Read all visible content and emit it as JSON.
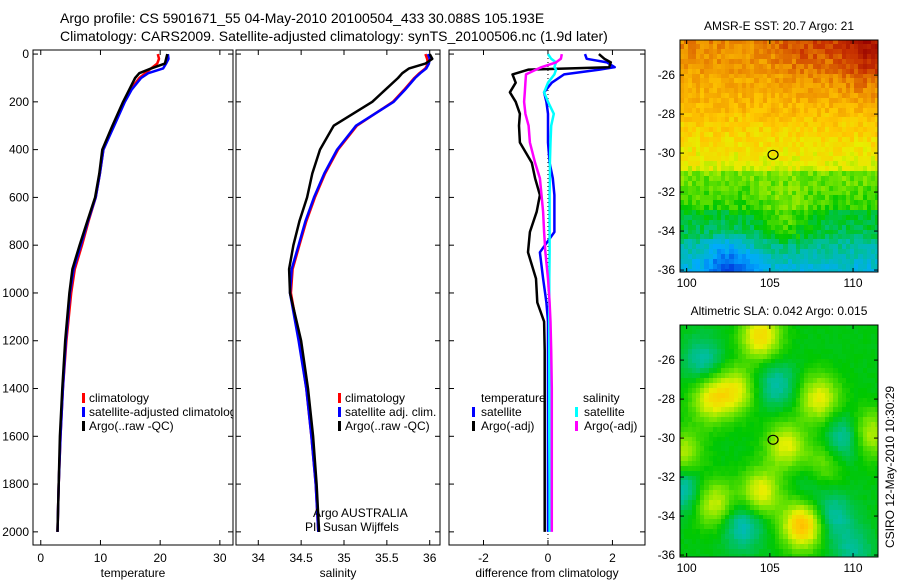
{
  "header": {
    "line1": "Argo profile: CS 5901671_55 04-May-2010 20100504_433 30.088S 105.193E",
    "line2": "Climatology: CARS2009. Satellite-adjusted climatology: synTS_20100506.nc (1.9d later)"
  },
  "footer_stamp": "CSIRO 12-May-2010 10:30:29",
  "colors": {
    "climatology": "#ff0000",
    "satellite": "#0000ff",
    "argo": "#000000",
    "sal_satellite": "#00ffff",
    "sal_argo": "#ff00ff"
  },
  "chart_data": [
    {
      "type": "line",
      "id": "temperature",
      "xlabel": "temperature",
      "ylabel": "",
      "xlim": [
        -1.3,
        32.2
      ],
      "ylim": [
        2055,
        -17
      ],
      "xticks": [
        "0",
        "10",
        "20",
        "30"
      ],
      "xtick_values": [
        0,
        10,
        20,
        30
      ],
      "yticks": [
        "0",
        "200",
        "400",
        "600",
        "800",
        "1000",
        "1200",
        "1400",
        "1600",
        "1800",
        "2000"
      ],
      "ytick_values": [
        0,
        200,
        400,
        600,
        800,
        1000,
        1200,
        1400,
        1600,
        1800,
        2000
      ],
      "depth": [
        0,
        20,
        40,
        60,
        80,
        100,
        150,
        200,
        300,
        400,
        500,
        600,
        700,
        800,
        900,
        1000,
        1200,
        1400,
        1600,
        1800,
        2000
      ],
      "series": [
        {
          "name": "climatology",
          "color": "#ff0000",
          "values": [
            19.6,
            19.8,
            19.5,
            18.5,
            17.5,
            16.5,
            15.0,
            14.0,
            12.2,
            10.5,
            9.9,
            9.2,
            8.0,
            6.9,
            5.7,
            5.1,
            4.3,
            3.7,
            3.3,
            3.0,
            2.8
          ]
        },
        {
          "name": "satellite-adjusted climatology",
          "color": "#0000ff",
          "values": [
            21.3,
            21.4,
            21.0,
            20.5,
            18.0,
            16.8,
            15.2,
            14.1,
            12.3,
            10.5,
            9.9,
            9.2,
            7.9,
            6.7,
            5.5,
            4.9,
            4.2,
            3.7,
            3.3,
            3.0,
            2.8
          ]
        },
        {
          "name": "Argo(..raw -QC)",
          "color": "#000000",
          "values": [
            21.2,
            21.0,
            20.8,
            18.5,
            16.5,
            15.8,
            14.8,
            13.8,
            12.0,
            10.3,
            9.8,
            9.1,
            7.8,
            6.5,
            5.3,
            4.8,
            4.1,
            3.6,
            3.2,
            3.0,
            2.8
          ]
        }
      ],
      "legend": [
        "climatology",
        "satellite-adjusted climatology",
        "Argo(..raw -QC)"
      ],
      "legend_placement": "lower-middle"
    },
    {
      "type": "line",
      "id": "salinity",
      "xlabel": "salinity",
      "xlim": [
        33.74,
        36.12
      ],
      "ylim": [
        2055,
        -17
      ],
      "xticks": [
        "34",
        "34.5",
        "35",
        "35.5",
        "36"
      ],
      "xtick_values": [
        34,
        34.5,
        35,
        35.5,
        36
      ],
      "ytick_values": [
        0,
        200,
        400,
        600,
        800,
        1000,
        1200,
        1400,
        1600,
        1800,
        2000
      ],
      "depth": [
        0,
        20,
        40,
        60,
        80,
        100,
        150,
        200,
        300,
        400,
        500,
        600,
        700,
        800,
        900,
        1000,
        1200,
        1400,
        1600,
        1800,
        2000
      ],
      "series": [
        {
          "name": "climatology",
          "color": "#ff0000",
          "values": [
            35.95,
            35.97,
            35.98,
            35.95,
            35.88,
            35.82,
            35.7,
            35.57,
            35.15,
            34.93,
            34.78,
            34.66,
            34.56,
            34.48,
            34.4,
            34.38,
            34.48,
            34.56,
            34.62,
            34.67,
            34.7
          ]
        },
        {
          "name": "satellite adj. clim.",
          "color": "#0000ff",
          "values": [
            35.98,
            36.0,
            35.99,
            35.96,
            35.89,
            35.83,
            35.71,
            35.58,
            35.14,
            34.92,
            34.77,
            34.65,
            34.55,
            34.47,
            34.39,
            34.37,
            34.47,
            34.56,
            34.62,
            34.67,
            34.7
          ]
        },
        {
          "name": "Argo(..raw -QC)",
          "color": "#000000",
          "values": [
            36.0,
            36.03,
            35.95,
            35.76,
            35.68,
            35.63,
            35.48,
            35.33,
            34.88,
            34.72,
            34.63,
            34.57,
            34.48,
            34.41,
            34.36,
            34.37,
            34.5,
            34.58,
            34.64,
            34.68,
            34.71
          ]
        }
      ],
      "legend": [
        "climatology",
        "satellite adj. clim.",
        "Argo(..raw -QC)"
      ],
      "annotation": [
        "Argo AUSTRALIA",
        "PI: Susan Wijffels"
      ]
    },
    {
      "type": "line",
      "id": "difference",
      "xlabel": "difference from climatology",
      "xlim": [
        -3.07,
        3.01
      ],
      "ylim": [
        2055,
        -17
      ],
      "xticks": [
        "-2",
        "0",
        "2"
      ],
      "xtick_values": [
        -2,
        0,
        2
      ],
      "ytick_values": [
        0,
        200,
        400,
        600,
        800,
        1000,
        1200,
        1400,
        1600,
        1800,
        2000
      ],
      "depth": [
        0,
        20,
        35,
        55,
        65,
        85,
        120,
        160,
        200,
        250,
        300,
        370,
        455,
        520,
        590,
        660,
        745,
        830,
        940,
        1040,
        1120,
        1240,
        1400,
        1600,
        1800,
        2000
      ],
      "series": [
        {
          "name": "temperature satellite",
          "color": "#0000ff",
          "values": [
            1.15,
            1.2,
            1.83,
            2.07,
            1.6,
            0.5,
            0.12,
            -0.12,
            -0.05,
            0.0,
            0.0,
            0.0,
            0.05,
            0.15,
            0.2,
            0.2,
            0.2,
            -0.25,
            -0.15,
            -0.05,
            0.0,
            0.0,
            0.0,
            0.0,
            0.0,
            0.0
          ]
        },
        {
          "name": "temperature Argo(-adj)",
          "color": "#000000",
          "values": [
            1.58,
            1.75,
            1.95,
            1.9,
            -0.6,
            -1.1,
            -1.0,
            -1.18,
            -1.0,
            -0.87,
            -0.9,
            -0.87,
            -0.5,
            -0.4,
            -0.25,
            -0.35,
            -0.56,
            -0.62,
            -0.37,
            -0.33,
            -0.12,
            -0.1,
            -0.1,
            -0.1,
            -0.1,
            -0.1
          ]
        },
        {
          "name": "salinity satellite",
          "color": "#00ffff",
          "values": [
            0.0,
            0.1,
            0.25,
            0.2,
            0.25,
            0.2,
            0.0,
            -0.12,
            0.0,
            0.18,
            0.1,
            0.08,
            0.06,
            0.06,
            0.05,
            0.05,
            0.05,
            0.05,
            0.04,
            0.04,
            0.04,
            0.04,
            0.04,
            0.04,
            0.05,
            0.05
          ]
        },
        {
          "name": "salinity Argo(-adj)",
          "color": "#ff00ff",
          "values": [
            0.43,
            0.4,
            0.25,
            -0.2,
            -0.37,
            -0.68,
            -0.7,
            -0.72,
            -0.74,
            -0.7,
            -0.6,
            -0.56,
            -0.4,
            -0.25,
            -0.2,
            -0.15,
            -0.12,
            -0.08,
            0.0,
            0.05,
            0.08,
            0.1,
            0.12,
            0.12,
            0.12,
            0.12
          ]
        }
      ],
      "legend_headers": [
        "temperature",
        "salinity"
      ],
      "legend": [
        "satellite",
        "Argo(-adj)",
        "satellite",
        "Argo(-adj)"
      ]
    },
    {
      "type": "heatmap",
      "id": "sst-map",
      "title": "AMSR-E SST: 20.7 Argo: 21",
      "xlim": [
        99.6,
        111.5
      ],
      "ylim": [
        -36.1,
        -24.2
      ],
      "xticks": [
        "100",
        "105",
        "110"
      ],
      "xtick_values": [
        100,
        105,
        110
      ],
      "yticks": [
        "-26",
        "-28",
        "-30",
        "-32",
        "-34",
        "-36"
      ],
      "ytick_values": [
        -26,
        -28,
        -30,
        -32,
        -34,
        -36
      ],
      "argo_position": [
        105.193,
        -30.088
      ]
    },
    {
      "type": "heatmap",
      "id": "sla-map",
      "title": "Altimetric SLA: 0.042 Argo: 0.015",
      "xlim": [
        99.6,
        111.5
      ],
      "ylim": [
        -36.1,
        -24.2
      ],
      "xticks": [
        "100",
        "105",
        "110"
      ],
      "xtick_values": [
        100,
        105,
        110
      ],
      "yticks": [
        "-26",
        "-28",
        "-30",
        "-32",
        "-34",
        "-36"
      ],
      "ytick_values": [
        -26,
        -28,
        -30,
        -32,
        -34,
        -36
      ],
      "argo_position": [
        105.193,
        -30.088
      ]
    }
  ]
}
